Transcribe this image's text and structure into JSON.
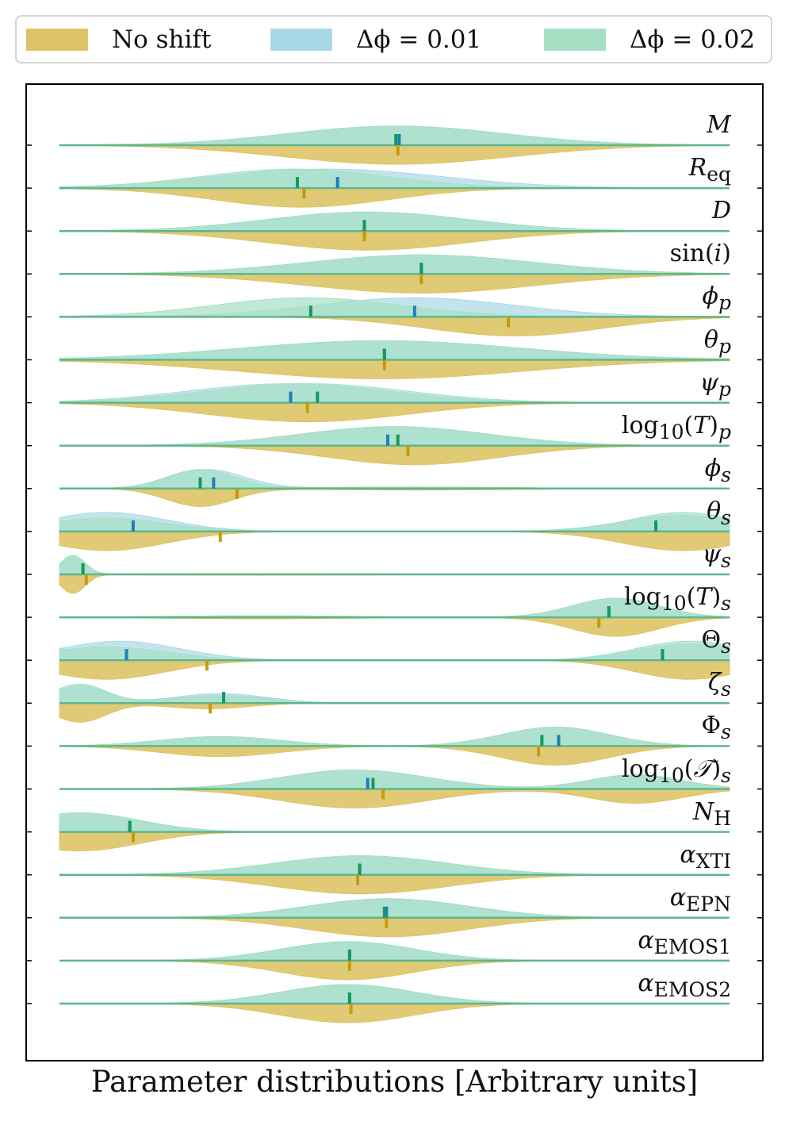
{
  "legend": {
    "items": [
      {
        "label": "No shift",
        "color": "#ddc466"
      },
      {
        "label": "Δϕ = 0.01",
        "color": "#a9d9e6"
      },
      {
        "label": "Δϕ = 0.02",
        "color": "#a6e0c4"
      }
    ]
  },
  "chart_data": {
    "type": "violin",
    "xlabel": "Parameter distributions [Arbitrary units]",
    "xlim": [
      0,
      1
    ],
    "series": [
      {
        "name": "No shift",
        "color": "#ddc466",
        "marker_color": "#c59a0e"
      },
      {
        "name": "Δϕ = 0.01",
        "color": "#a9d9e6",
        "marker_color": "#1f7fb5"
      },
      {
        "name": "Δϕ = 0.02",
        "color": "#a6e0c4",
        "marker_color": "#149a5c"
      }
    ],
    "parameters": [
      {
        "label": "M",
        "median_noshift": 0.505,
        "median_shift001": 0.507,
        "median_shift002": 0.502,
        "noshift": [
          [
            0.505,
            0.17,
            1.0
          ]
        ],
        "shift001": [
          [
            0.505,
            0.16,
            1.0
          ]
        ],
        "shift002": [
          [
            0.5,
            0.16,
            1.0
          ]
        ]
      },
      {
        "label": "R_eq",
        "median_noshift": 0.365,
        "median_shift001": 0.415,
        "median_shift002": 0.355,
        "noshift": [
          [
            0.36,
            0.13,
            1.0
          ]
        ],
        "shift001": [
          [
            0.4,
            0.17,
            1.0
          ]
        ],
        "shift002": [
          [
            0.35,
            0.14,
            1.0
          ]
        ]
      },
      {
        "label": "D",
        "median_noshift": 0.455,
        "median_shift001": 0.455,
        "median_shift002": 0.455,
        "noshift": [
          [
            0.46,
            0.15,
            1.0
          ]
        ],
        "shift001": [
          [
            0.46,
            0.15,
            1.0
          ]
        ],
        "shift002": [
          [
            0.46,
            0.15,
            1.0
          ]
        ]
      },
      {
        "label": "sin(i)",
        "median_noshift": 0.54,
        "median_shift001": 0.54,
        "median_shift002": 0.54,
        "noshift": [
          [
            0.54,
            0.17,
            1.0
          ]
        ],
        "shift001": [
          [
            0.54,
            0.17,
            1.0
          ]
        ],
        "shift002": [
          [
            0.54,
            0.17,
            1.0
          ]
        ]
      },
      {
        "label": "phi_p",
        "median_noshift": 0.67,
        "median_shift001": 0.53,
        "median_shift002": 0.375,
        "noshift": [
          [
            0.68,
            0.13,
            1.0
          ]
        ],
        "shift001": [
          [
            0.53,
            0.15,
            1.0
          ]
        ],
        "shift002": [
          [
            0.37,
            0.14,
            1.0
          ]
        ]
      },
      {
        "label": "theta_p",
        "median_noshift": 0.485,
        "median_shift001": 0.485,
        "median_shift002": 0.485,
        "noshift": [
          [
            0.48,
            0.21,
            1.0
          ]
        ],
        "shift001": [
          [
            0.48,
            0.21,
            1.0
          ]
        ],
        "shift002": [
          [
            0.48,
            0.21,
            1.0
          ]
        ]
      },
      {
        "label": "psi_p",
        "median_noshift": 0.37,
        "median_shift001": 0.345,
        "median_shift002": 0.385,
        "noshift": [
          [
            0.37,
            0.15,
            1.0
          ]
        ],
        "shift001": [
          [
            0.34,
            0.15,
            1.0
          ]
        ],
        "shift002": [
          [
            0.37,
            0.15,
            1.0
          ]
        ]
      },
      {
        "label": "log10(T)_p",
        "median_noshift": 0.52,
        "median_shift001": 0.49,
        "median_shift002": 0.505,
        "noshift": [
          [
            0.53,
            0.13,
            1.0
          ]
        ],
        "shift001": [
          [
            0.5,
            0.14,
            1.0
          ]
        ],
        "shift002": [
          [
            0.5,
            0.14,
            1.0
          ]
        ]
      },
      {
        "label": "phi_s",
        "median_noshift": 0.265,
        "median_shift001": 0.23,
        "median_shift002": 0.21,
        "noshift": [
          [
            0.21,
            0.05,
            0.85
          ],
          [
            0.53,
            0.15,
            0.07
          ]
        ],
        "shift001": [
          [
            0.22,
            0.055,
            0.9
          ],
          [
            0.53,
            0.15,
            0.07
          ]
        ],
        "shift002": [
          [
            0.21,
            0.05,
            0.9
          ],
          [
            0.53,
            0.15,
            0.07
          ]
        ]
      },
      {
        "label": "theta_s",
        "median_noshift": 0.24,
        "median_shift001": 0.11,
        "median_shift002": 0.89,
        "noshift": [
          [
            0.07,
            0.09,
            1.0
          ],
          [
            0.93,
            0.09,
            1.0
          ]
        ],
        "shift001": [
          [
            0.07,
            0.09,
            1.0
          ],
          [
            0.93,
            0.09,
            0.85
          ]
        ],
        "shift002": [
          [
            0.07,
            0.09,
            0.7
          ],
          [
            0.93,
            0.08,
            1.0
          ]
        ]
      },
      {
        "label": "psi_s",
        "median_noshift": 0.04,
        "median_shift001": 0.035,
        "median_shift002": 0.035,
        "noshift": [
          [
            0.02,
            0.018,
            1.0
          ],
          [
            0.3,
            0.2,
            0.04
          ]
        ],
        "shift001": [
          [
            0.02,
            0.018,
            1.0
          ],
          [
            0.3,
            0.2,
            0.04
          ]
        ],
        "shift002": [
          [
            0.02,
            0.018,
            1.0
          ],
          [
            0.3,
            0.2,
            0.04
          ]
        ]
      },
      {
        "label": "log10(T)_s",
        "median_noshift": 0.805,
        "median_shift001": 0.82,
        "median_shift002": 0.82,
        "noshift": [
          [
            0.83,
            0.065,
            1.0
          ],
          [
            0.3,
            0.14,
            0.08
          ]
        ],
        "shift001": [
          [
            0.83,
            0.065,
            1.0
          ],
          [
            0.3,
            0.14,
            0.08
          ]
        ],
        "shift002": [
          [
            0.83,
            0.065,
            1.0
          ],
          [
            0.3,
            0.14,
            0.08
          ]
        ]
      },
      {
        "label": "Theta_s",
        "median_noshift": 0.22,
        "median_shift001": 0.1,
        "median_shift002": 0.9,
        "noshift": [
          [
            0.07,
            0.09,
            1.0
          ],
          [
            0.94,
            0.08,
            1.0
          ]
        ],
        "shift001": [
          [
            0.09,
            0.09,
            1.0
          ],
          [
            0.94,
            0.08,
            0.85
          ]
        ],
        "shift002": [
          [
            0.07,
            0.09,
            0.7
          ],
          [
            0.94,
            0.08,
            1.0
          ]
        ]
      },
      {
        "label": "zeta_s",
        "median_noshift": 0.225,
        "median_shift001": 0.245,
        "median_shift002": 0.245,
        "noshift": [
          [
            0.03,
            0.04,
            1.0
          ],
          [
            0.22,
            0.06,
            0.3
          ]
        ],
        "shift001": [
          [
            0.03,
            0.04,
            0.9
          ],
          [
            0.24,
            0.07,
            0.5
          ]
        ],
        "shift002": [
          [
            0.03,
            0.04,
            1.0
          ],
          [
            0.24,
            0.07,
            0.4
          ]
        ]
      },
      {
        "label": "Phi_s",
        "median_noshift": 0.715,
        "median_shift001": 0.745,
        "median_shift002": 0.72,
        "noshift": [
          [
            0.24,
            0.09,
            0.55
          ],
          [
            0.74,
            0.08,
            1.0
          ]
        ],
        "shift001": [
          [
            0.24,
            0.09,
            0.5
          ],
          [
            0.74,
            0.08,
            1.0
          ]
        ],
        "shift002": [
          [
            0.24,
            0.09,
            0.5
          ],
          [
            0.74,
            0.08,
            1.0
          ]
        ]
      },
      {
        "label": "log10(Tcal)_s",
        "median_noshift": 0.483,
        "median_shift001": 0.46,
        "median_shift002": 0.468,
        "noshift": [
          [
            0.44,
            0.11,
            1.0
          ],
          [
            0.86,
            0.07,
            0.75
          ]
        ],
        "shift001": [
          [
            0.44,
            0.11,
            1.0
          ],
          [
            0.86,
            0.07,
            0.7
          ]
        ],
        "shift002": [
          [
            0.44,
            0.11,
            1.0
          ],
          [
            0.86,
            0.07,
            0.75
          ]
        ]
      },
      {
        "label": "N_H",
        "median_noshift": 0.11,
        "median_shift001": 0.105,
        "median_shift002": 0.105,
        "noshift": [
          [
            0.03,
            0.09,
            1.0
          ]
        ],
        "shift001": [
          [
            0.03,
            0.09,
            1.0
          ]
        ],
        "shift002": [
          [
            0.03,
            0.09,
            1.0
          ]
        ]
      },
      {
        "label": "alpha_XTI",
        "median_noshift": 0.445,
        "median_shift001": 0.448,
        "median_shift002": 0.448,
        "noshift": [
          [
            0.45,
            0.13,
            1.0
          ]
        ],
        "shift001": [
          [
            0.45,
            0.13,
            1.0
          ]
        ],
        "shift002": [
          [
            0.45,
            0.13,
            1.0
          ]
        ]
      },
      {
        "label": "alpha_EPN",
        "median_noshift": 0.488,
        "median_shift001": 0.488,
        "median_shift002": 0.485,
        "noshift": [
          [
            0.49,
            0.12,
            1.0
          ]
        ],
        "shift001": [
          [
            0.49,
            0.12,
            1.0
          ]
        ],
        "shift002": [
          [
            0.49,
            0.12,
            1.0
          ]
        ]
      },
      {
        "label": "alpha_EMOS1",
        "median_noshift": 0.433,
        "median_shift001": 0.433,
        "median_shift002": 0.433,
        "noshift": [
          [
            0.43,
            0.1,
            1.0
          ]
        ],
        "shift001": [
          [
            0.43,
            0.1,
            1.0
          ]
        ],
        "shift002": [
          [
            0.43,
            0.1,
            1.0
          ]
        ]
      },
      {
        "label": "alpha_EMOS2",
        "median_noshift": 0.435,
        "median_shift001": 0.433,
        "median_shift002": 0.433,
        "noshift": [
          [
            0.43,
            0.1,
            1.0
          ]
        ],
        "shift001": [
          [
            0.43,
            0.1,
            1.0
          ]
        ],
        "shift002": [
          [
            0.43,
            0.1,
            1.0
          ]
        ]
      }
    ]
  }
}
